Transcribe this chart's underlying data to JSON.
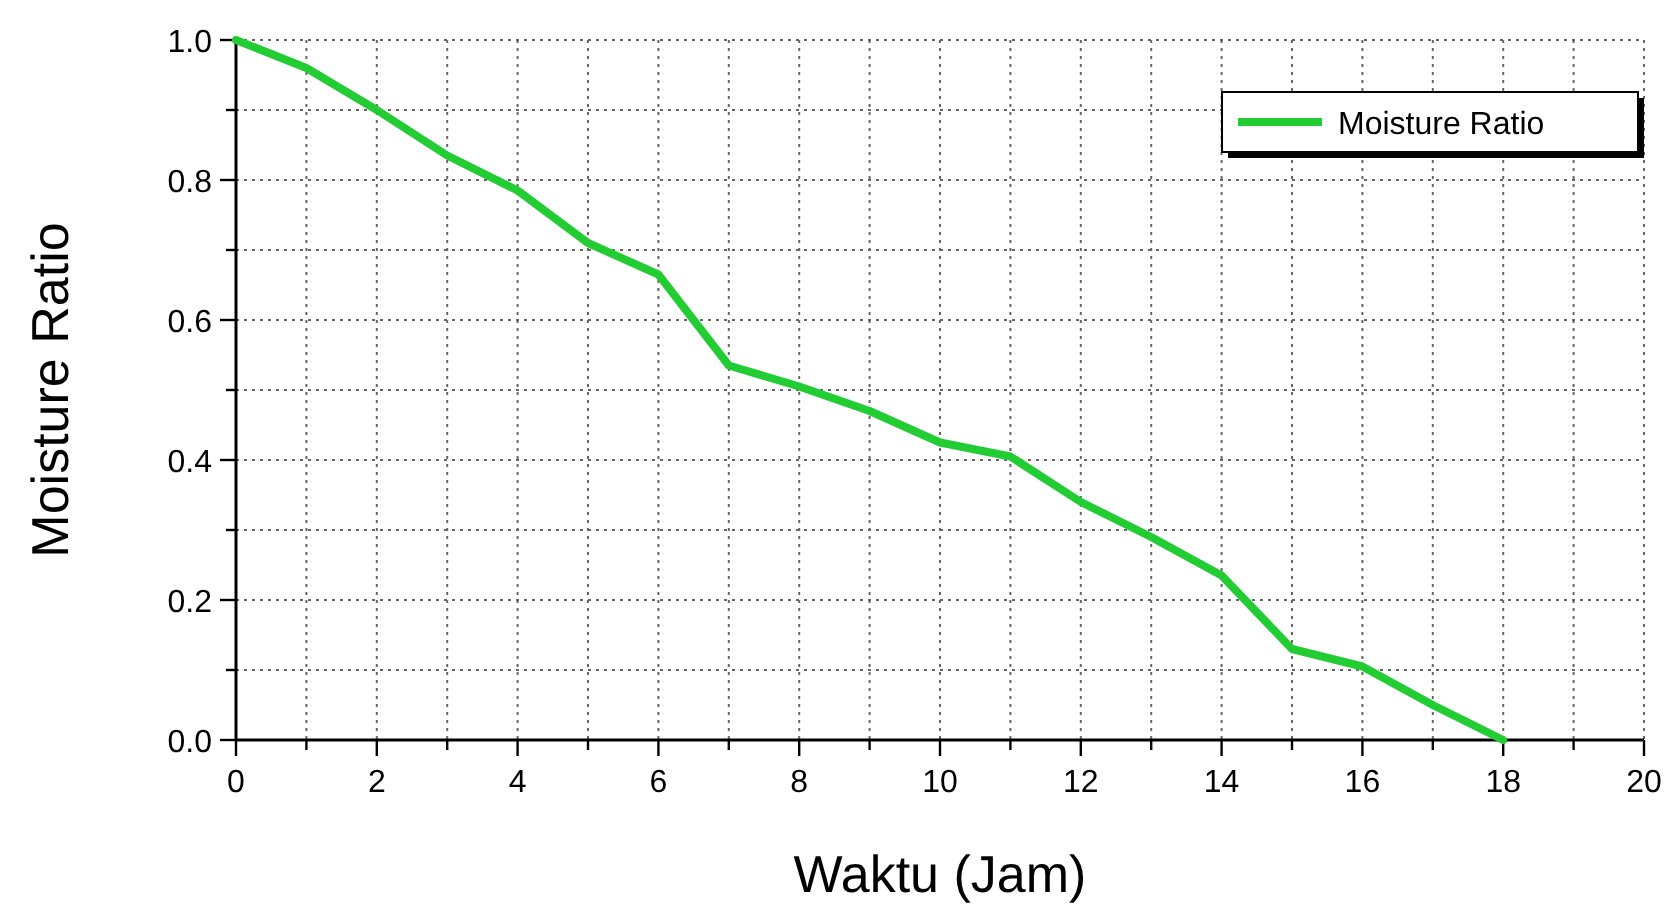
{
  "chart_data": {
    "type": "line",
    "xlabel": "Waktu (Jam)",
    "ylabel": "Moisture Ratio",
    "x": [
      0,
      1,
      2,
      3,
      4,
      5,
      6,
      7,
      8,
      9,
      10,
      11,
      12,
      13,
      14,
      15,
      16,
      17,
      18
    ],
    "series": [
      {
        "name": "Moisture Ratio",
        "color": "#22cc33",
        "values": [
          1.0,
          0.96,
          0.9,
          0.835,
          0.785,
          0.71,
          0.665,
          0.535,
          0.505,
          0.47,
          0.425,
          0.405,
          0.34,
          0.29,
          0.235,
          0.13,
          0.105,
          0.05,
          0.0
        ]
      }
    ],
    "xlim": [
      0,
      20
    ],
    "xticks": [
      0,
      {
        "value": 1,
        "label": null
      },
      2,
      {
        "value": 3,
        "label": null
      },
      4,
      {
        "value": 5,
        "label": null
      },
      6,
      {
        "value": 7,
        "label": null
      },
      8,
      {
        "value": 9,
        "label": null
      },
      10,
      {
        "value": 11,
        "label": null
      },
      12,
      {
        "value": 13,
        "label": null
      },
      14,
      {
        "value": 15,
        "label": null
      },
      16,
      {
        "value": 17,
        "label": null
      },
      18,
      {
        "value": 19,
        "label": null
      },
      20
    ],
    "ylim": [
      0,
      1
    ],
    "yticks": [
      {
        "value": 0,
        "label": "0.0"
      },
      {
        "value": 0.1,
        "label": null
      },
      0.2,
      {
        "value": 0.3,
        "label": null
      },
      0.4,
      {
        "value": 0.5,
        "label": null
      },
      0.6,
      {
        "value": 0.7,
        "label": null
      },
      0.8,
      {
        "value": 0.9,
        "label": null
      },
      {
        "value": 1,
        "label": "1.0"
      }
    ],
    "grid": true,
    "legend": "top right",
    "marker": "none",
    "line_style": "solid"
  }
}
